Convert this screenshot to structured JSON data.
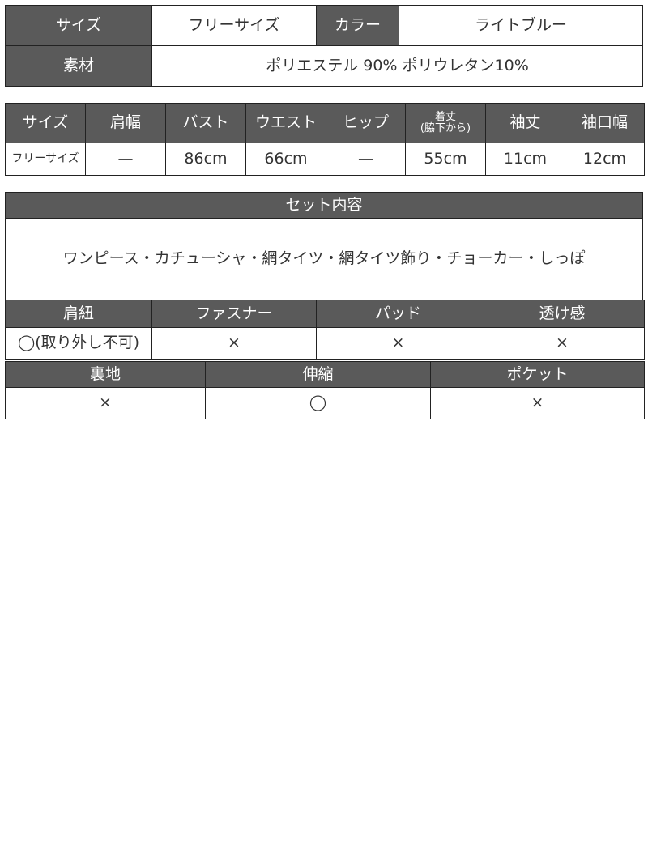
{
  "basic": {
    "size_label": "サイズ",
    "size_value": "フリーサイズ",
    "color_label": "カラー",
    "color_value": "ライトブルー",
    "material_label": "素材",
    "material_value": "ポリエステル 90% ポリウレタン10%"
  },
  "measurements": {
    "headers": [
      "サイズ",
      "肩幅",
      "バスト",
      "ウエスト",
      "ヒップ",
      "着丈\n(脇下から)",
      "袖丈",
      "袖口幅"
    ],
    "row": [
      "フリーサイズ",
      "—",
      "86cm",
      "66cm",
      "—",
      "55cm",
      "11cm",
      "12cm"
    ]
  },
  "set": {
    "title": "セット内容",
    "contents": "ワンピース・カチューシャ・網タイツ・網タイツ飾り・チョーカー・しっぽ"
  },
  "features1": {
    "headers": [
      "肩紐",
      "ファスナー",
      "パッド",
      "透け感"
    ],
    "values": [
      "◯(取り外し不可)",
      "×",
      "×",
      "×"
    ]
  },
  "features2": {
    "headers": [
      "裏地",
      "伸縮",
      "ポケット"
    ],
    "values": [
      "×",
      "◯",
      "×"
    ]
  },
  "colors": {
    "header_bg": "#5a5a5a",
    "border": "#222222"
  }
}
